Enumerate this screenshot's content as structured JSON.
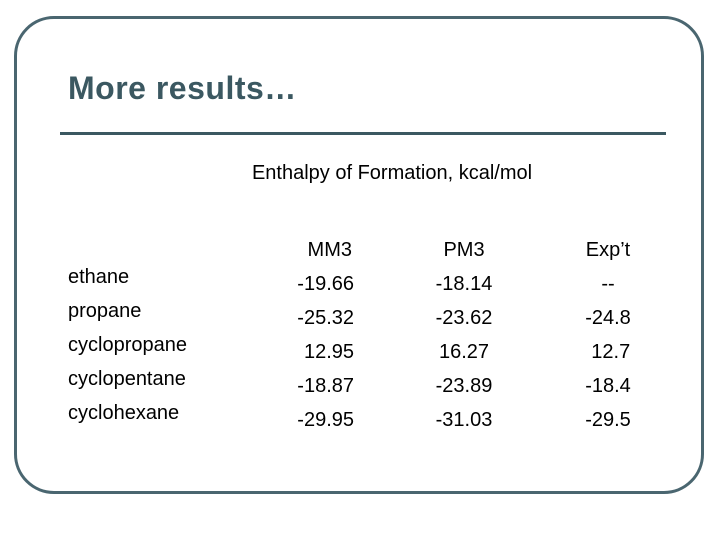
{
  "slide": {
    "title": "More results…",
    "subtitle": "Enthalpy of Formation, kcal/mol"
  },
  "table": {
    "headers": [
      "MM3",
      "PM3",
      "Exp’t"
    ],
    "rows": [
      {
        "name": "ethane",
        "mm3": "-19.66",
        "pm3": "-18.14",
        "expt": "--"
      },
      {
        "name": "propane",
        "mm3": "-25.32",
        "pm3": "-23.62",
        "expt": "-24.8"
      },
      {
        "name": "cyclopropane",
        "mm3": " 12.95",
        "pm3": "16.27",
        "expt": " 12.7"
      },
      {
        "name": "cyclopentane",
        "mm3": "-18.87",
        "pm3": "-23.89",
        "expt": "-18.4"
      },
      {
        "name": "cyclohexane",
        "mm3": "-29.95",
        "pm3": "-31.03",
        "expt": "-29.5"
      }
    ]
  }
}
